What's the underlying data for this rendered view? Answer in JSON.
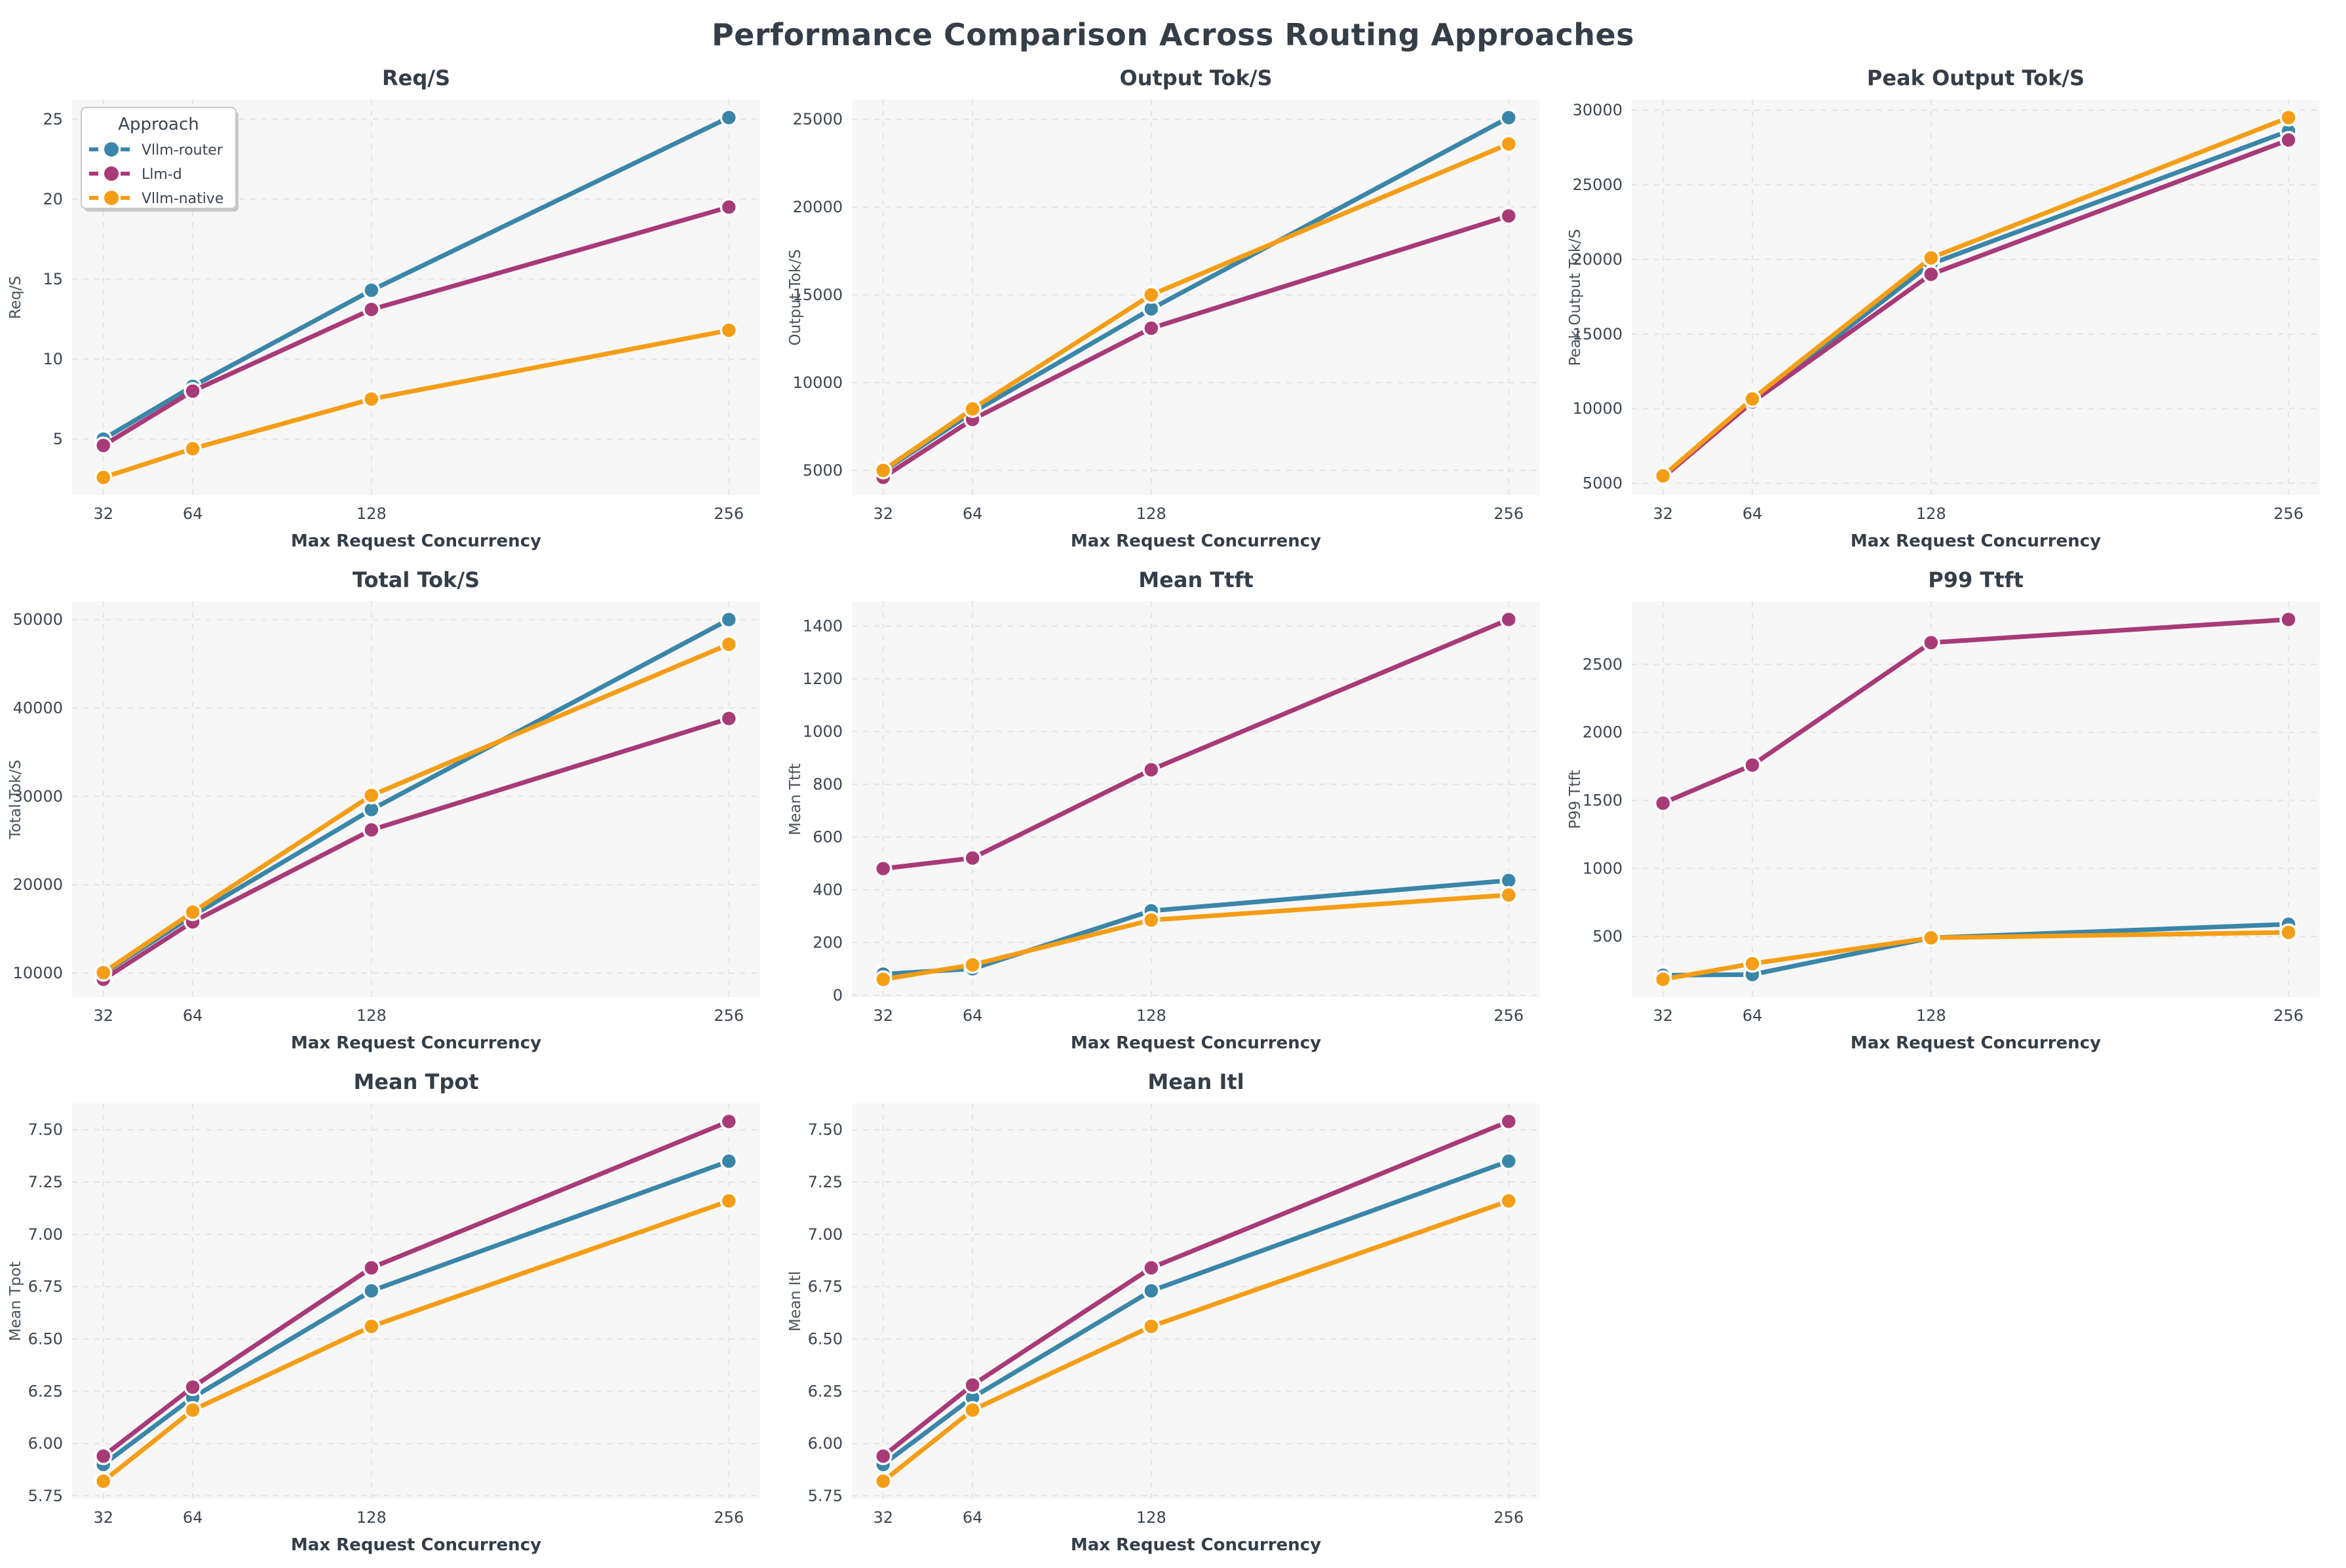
{
  "page_title": "Performance Comparison Across Routing Approaches",
  "colors": {
    "background": "#ffffff",
    "plot_background": "#f7f7f8",
    "grid": "#e4e4e8",
    "title_text": "#343e48",
    "tick_text": "#3b4550",
    "ylabel_text": "#4a535c",
    "legend_border": "#c8c8c8",
    "series": {
      "Vllm-router": "#3A86A8",
      "Llm-d": "#A83A78",
      "Vllm-native": "#F49D15"
    }
  },
  "legend": {
    "title": "Approach",
    "entries": [
      "Vllm-router",
      "Llm-d",
      "Vllm-native"
    ]
  },
  "x_axis": {
    "label": "Max Request Concurrency",
    "ticks": [
      32,
      64,
      128,
      256
    ],
    "tick_labels": [
      "32",
      "64",
      "128",
      "256"
    ]
  },
  "chart_data": [
    {
      "type": "line",
      "title": "Req/S",
      "ylabel": "Req/S",
      "xlabel": "Max Request Concurrency",
      "x": [
        32,
        64,
        128,
        256
      ],
      "x_tick_labels": [
        "32",
        "64",
        "128",
        "256"
      ],
      "series": [
        {
          "name": "Vllm-router",
          "values": [
            5.0,
            8.3,
            14.3,
            25.1
          ]
        },
        {
          "name": "Llm-d",
          "values": [
            4.6,
            8.0,
            13.1,
            19.5
          ]
        },
        {
          "name": "Vllm-native",
          "values": [
            2.6,
            4.4,
            7.5,
            11.8
          ]
        }
      ],
      "ylim": [
        1.48,
        26.22
      ],
      "yticks": [
        5,
        10,
        15,
        20,
        25
      ],
      "ytick_labels": [
        "5",
        "10",
        "15",
        "20",
        "25"
      ],
      "show_legend": true
    },
    {
      "type": "line",
      "title": "Output Tok/S",
      "ylabel": "Output Tok/S",
      "xlabel": "Max Request Concurrency",
      "x": [
        32,
        64,
        128,
        256
      ],
      "x_tick_labels": [
        "32",
        "64",
        "128",
        "256"
      ],
      "series": [
        {
          "name": "Vllm-router",
          "values": [
            4950,
            8300,
            14200,
            25100
          ]
        },
        {
          "name": "Llm-d",
          "values": [
            4600,
            7900,
            13100,
            19500
          ]
        },
        {
          "name": "Vllm-native",
          "values": [
            5000,
            8500,
            15000,
            23600
          ]
        }
      ],
      "ylim": [
        3575,
        26125
      ],
      "yticks": [
        5000,
        10000,
        15000,
        20000,
        25000
      ],
      "ytick_labels": [
        "5000",
        "10000",
        "15000",
        "20000",
        "25000"
      ],
      "show_legend": false
    },
    {
      "type": "line",
      "title": "Peak Output Tok/S",
      "ylabel": "Peak Output Tok/S",
      "xlabel": "Max Request Concurrency",
      "x": [
        32,
        64,
        128,
        256
      ],
      "x_tick_labels": [
        "32",
        "64",
        "128",
        "256"
      ],
      "series": [
        {
          "name": "Vllm-router",
          "values": [
            5450,
            10500,
            19700,
            28600
          ]
        },
        {
          "name": "Llm-d",
          "values": [
            5400,
            10450,
            19000,
            28000
          ]
        },
        {
          "name": "Vllm-native",
          "values": [
            5500,
            10650,
            20100,
            29500
          ]
        }
      ],
      "ylim": [
        4195,
        30705
      ],
      "yticks": [
        5000,
        10000,
        15000,
        20000,
        25000,
        30000
      ],
      "ytick_labels": [
        "5000",
        "10000",
        "15000",
        "20000",
        "25000",
        "30000"
      ],
      "show_legend": false
    },
    {
      "type": "line",
      "title": "Total Tok/S",
      "ylabel": "Total Tok/S",
      "xlabel": "Max Request Concurrency",
      "x": [
        32,
        64,
        128,
        256
      ],
      "x_tick_labels": [
        "32",
        "64",
        "128",
        "256"
      ],
      "series": [
        {
          "name": "Vllm-router",
          "values": [
            9950,
            16500,
            28500,
            50000
          ]
        },
        {
          "name": "Llm-d",
          "values": [
            9300,
            15800,
            26200,
            38800
          ]
        },
        {
          "name": "Vllm-native",
          "values": [
            10050,
            16900,
            30100,
            47200
          ]
        }
      ],
      "ylim": [
        7265,
        52035
      ],
      "yticks": [
        10000,
        20000,
        30000,
        40000,
        50000
      ],
      "ytick_labels": [
        "10000",
        "20000",
        "30000",
        "40000",
        "50000"
      ],
      "show_legend": false
    },
    {
      "type": "line",
      "title": "Mean Ttft",
      "ylabel": "Mean Ttft",
      "xlabel": "Max Request Concurrency",
      "x": [
        32,
        64,
        128,
        256
      ],
      "x_tick_labels": [
        "32",
        "64",
        "128",
        "256"
      ],
      "series": [
        {
          "name": "Vllm-router",
          "values": [
            80,
            100,
            320,
            435
          ]
        },
        {
          "name": "Llm-d",
          "values": [
            480,
            520,
            855,
            1425
          ]
        },
        {
          "name": "Vllm-native",
          "values": [
            60,
            115,
            285,
            380
          ]
        }
      ],
      "ylim": [
        -8,
        1493
      ],
      "yticks": [
        0,
        200,
        400,
        600,
        800,
        1000,
        1200,
        1400
      ],
      "ytick_labels": [
        "0",
        "200",
        "400",
        "600",
        "800",
        "1000",
        "1200",
        "1400"
      ],
      "show_legend": false
    },
    {
      "type": "line",
      "title": "P99 Ttft",
      "ylabel": "P99 Ttft",
      "xlabel": "Max Request Concurrency",
      "x": [
        32,
        64,
        128,
        256
      ],
      "x_tick_labels": [
        "32",
        "64",
        "128",
        "256"
      ],
      "series": [
        {
          "name": "Vllm-router",
          "values": [
            215,
            220,
            490,
            590
          ]
        },
        {
          "name": "Llm-d",
          "values": [
            1480,
            1760,
            2660,
            2830
          ]
        },
        {
          "name": "Vllm-native",
          "values": [
            185,
            300,
            490,
            530
          ]
        }
      ],
      "ylim": [
        53,
        2962
      ],
      "yticks": [
        500,
        1000,
        1500,
        2000,
        2500
      ],
      "ytick_labels": [
        "500",
        "1000",
        "1500",
        "2000",
        "2500"
      ],
      "show_legend": false
    },
    {
      "type": "line",
      "title": "Mean Tpot",
      "ylabel": "Mean Tpot",
      "xlabel": "Max Request Concurrency",
      "x": [
        32,
        64,
        128,
        256
      ],
      "x_tick_labels": [
        "32",
        "64",
        "128",
        "256"
      ],
      "series": [
        {
          "name": "Vllm-router",
          "values": [
            5.9,
            6.22,
            6.73,
            7.35
          ]
        },
        {
          "name": "Llm-d",
          "values": [
            5.94,
            6.27,
            6.84,
            7.54
          ]
        },
        {
          "name": "Vllm-native",
          "values": [
            5.82,
            6.16,
            6.56,
            7.16
          ]
        }
      ],
      "ylim": [
        5.734,
        7.626
      ],
      "yticks": [
        5.75,
        6.0,
        6.25,
        6.5,
        6.75,
        7.0,
        7.25,
        7.5
      ],
      "ytick_labels": [
        "5.75",
        "6.00",
        "6.25",
        "6.50",
        "6.75",
        "7.00",
        "7.25",
        "7.50"
      ],
      "show_legend": false
    },
    {
      "type": "line",
      "title": "Mean Itl",
      "ylabel": "Mean Itl",
      "xlabel": "Max Request Concurrency",
      "x": [
        32,
        64,
        128,
        256
      ],
      "x_tick_labels": [
        "32",
        "64",
        "128",
        "256"
      ],
      "series": [
        {
          "name": "Vllm-router",
          "values": [
            5.9,
            6.22,
            6.73,
            7.35
          ]
        },
        {
          "name": "Llm-d",
          "values": [
            5.94,
            6.28,
            6.84,
            7.54
          ]
        },
        {
          "name": "Vllm-native",
          "values": [
            5.82,
            6.16,
            6.56,
            7.16
          ]
        }
      ],
      "ylim": [
        5.734,
        7.626
      ],
      "yticks": [
        5.75,
        6.0,
        6.25,
        6.5,
        6.75,
        7.0,
        7.25,
        7.5
      ],
      "ytick_labels": [
        "5.75",
        "6.00",
        "6.25",
        "6.50",
        "6.75",
        "7.00",
        "7.25",
        "7.50"
      ],
      "show_legend": false
    }
  ]
}
